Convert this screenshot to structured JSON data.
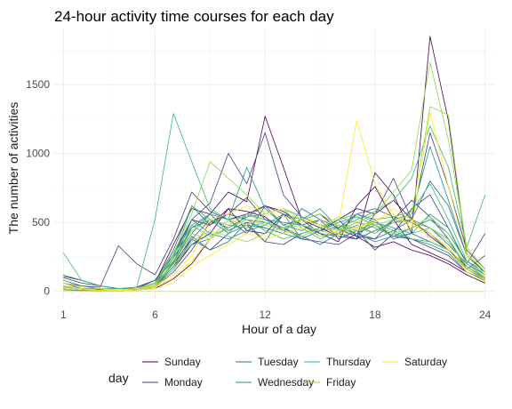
{
  "chart_data": {
    "type": "line",
    "title": "24-hour activity time courses for each day",
    "xlabel": "Hour of a day",
    "ylabel": "The number of activities",
    "xlim": [
      0.5,
      24.5
    ],
    "ylim": [
      -60,
      1900
    ],
    "x_ticks": [
      1,
      6,
      12,
      18,
      24
    ],
    "x_tick_labels": [
      "1",
      "6",
      "12",
      "18",
      "24"
    ],
    "y_ticks": [
      0,
      500,
      1000,
      1500
    ],
    "y_tick_labels": [
      "0",
      "500",
      "1000",
      "1500"
    ],
    "grid": true,
    "legend_title": "day",
    "legend_position": "bottom",
    "x": [
      1,
      2,
      3,
      4,
      5,
      6,
      7,
      8,
      9,
      10,
      11,
      12,
      13,
      14,
      15,
      16,
      17,
      18,
      19,
      20,
      21,
      22,
      23,
      24
    ],
    "series": [
      {
        "name": "Sunday",
        "color": "#440154",
        "lines": [
          [
            40,
            20,
            15,
            10,
            20,
            60,
            340,
            600,
            560,
            720,
            650,
            1270,
            900,
            520,
            460,
            400,
            380,
            860,
            700,
            420,
            1850,
            1240,
            260,
            140
          ],
          [
            20,
            10,
            10,
            5,
            10,
            30,
            160,
            340,
            420,
            600,
            580,
            540,
            440,
            520,
            560,
            450,
            400,
            320,
            360,
            300,
            260,
            200,
            120,
            60
          ],
          [
            110,
            80,
            40,
            20,
            30,
            80,
            260,
            520,
            480,
            600,
            440,
            420,
            560,
            480,
            420,
            360,
            620,
            760,
            520,
            340,
            280,
            220,
            140,
            80
          ],
          [
            30,
            20,
            10,
            10,
            10,
            20,
            90,
            200,
            380,
            520,
            560,
            620,
            580,
            480,
            440,
            520,
            600,
            560,
            660,
            520,
            400,
            300,
            180,
            90
          ]
        ]
      },
      {
        "name": "Monday",
        "color": "#443A83",
        "lines": [
          [
            20,
            10,
            5,
            5,
            10,
            40,
            210,
            520,
            640,
            1000,
            780,
            1150,
            700,
            540,
            480,
            420,
            380,
            560,
            820,
            520,
            1150,
            760,
            300,
            160
          ],
          [
            60,
            40,
            30,
            330,
            200,
            120,
            380,
            720,
            580,
            520,
            420,
            620,
            560,
            480,
            520,
            380,
            440,
            300,
            420,
            600,
            700,
            460,
            200,
            420
          ],
          [
            10,
            5,
            5,
            5,
            10,
            30,
            140,
            300,
            500,
            560,
            680,
            520,
            460,
            380,
            360,
            340,
            420,
            480,
            400,
            380,
            320,
            260,
            140,
            80
          ],
          [
            100,
            60,
            40,
            20,
            20,
            60,
            200,
            380,
            300,
            420,
            480,
            360,
            340,
            420,
            460,
            520,
            400,
            380,
            520,
            660,
            540,
            380,
            160,
            260
          ]
        ]
      },
      {
        "name": "Tuesday",
        "color": "#31688E",
        "lines": [
          [
            10,
            10,
            5,
            5,
            10,
            40,
            160,
            380,
            520,
            460,
            540,
            620,
            480,
            520,
            420,
            400,
            380,
            440,
            500,
            520,
            800,
            620,
            260,
            120
          ],
          [
            60,
            20,
            10,
            10,
            20,
            80,
            220,
            420,
            560,
            440,
            500,
            360,
            560,
            380,
            440,
            460,
            560,
            520,
            380,
            420,
            360,
            300,
            180,
            100
          ],
          [
            20,
            10,
            10,
            10,
            20,
            60,
            300,
            620,
            480,
            560,
            520,
            500,
            460,
            400,
            340,
            420,
            560,
            600,
            540,
            500,
            420,
            300,
            160,
            90
          ],
          [
            40,
            20,
            20,
            10,
            20,
            40,
            180,
            400,
            300,
            360,
            500,
            460,
            420,
            600,
            520,
            460,
            420,
            380,
            440,
            520,
            460,
            340,
            200,
            120
          ]
        ]
      },
      {
        "name": "Wednesday",
        "color": "#21908C",
        "lines": [
          [
            30,
            20,
            10,
            10,
            20,
            60,
            240,
            460,
            520,
            420,
            560,
            520,
            500,
            480,
            400,
            420,
            480,
            420,
            520,
            560,
            1050,
            660,
            260,
            120
          ],
          [
            20,
            10,
            10,
            5,
            10,
            40,
            200,
            460,
            560,
            520,
            900,
            600,
            480,
            440,
            520,
            480,
            440,
            500,
            460,
            420,
            560,
            460,
            200,
            100
          ],
          [
            80,
            40,
            20,
            20,
            20,
            60,
            280,
            520,
            420,
            380,
            440,
            480,
            560,
            520,
            600,
            460,
            420,
            360,
            400,
            460,
            520,
            420,
            220,
            140
          ],
          [
            10,
            10,
            5,
            5,
            10,
            40,
            180,
            340,
            380,
            520,
            480,
            460,
            420,
            380,
            440,
            500,
            540,
            480,
            420,
            380,
            340,
            280,
            140,
            80
          ]
        ]
      },
      {
        "name": "Thursday",
        "color": "#35B779",
        "lines": [
          [
            280,
            80,
            40,
            20,
            30,
            520,
            1290,
            940,
            600,
            520,
            540,
            560,
            600,
            540,
            480,
            460,
            520,
            580,
            660,
            820,
            1200,
            900,
            320,
            700
          ],
          [
            40,
            20,
            10,
            10,
            20,
            60,
            240,
            620,
            520,
            480,
            460,
            500,
            440,
            520,
            560,
            480,
            420,
            520,
            540,
            580,
            780,
            520,
            220,
            120
          ],
          [
            20,
            10,
            10,
            5,
            10,
            40,
            200,
            480,
            560,
            420,
            480,
            560,
            600,
            460,
            380,
            440,
            500,
            460,
            400,
            420,
            460,
            380,
            180,
            90
          ],
          [
            120,
            80,
            40,
            20,
            20,
            60,
            260,
            480,
            400,
            460,
            520,
            440,
            380,
            420,
            460,
            520,
            560,
            500,
            440,
            380,
            360,
            300,
            160,
            80
          ]
        ]
      },
      {
        "name": "Friday",
        "color": "#8FD744",
        "lines": [
          [
            30,
            20,
            10,
            10,
            20,
            60,
            280,
            560,
            940,
            820,
            700,
            560,
            600,
            520,
            480,
            440,
            500,
            560,
            720,
            880,
            1660,
            1100,
            320,
            160
          ],
          [
            20,
            10,
            10,
            5,
            10,
            40,
            220,
            440,
            520,
            480,
            560,
            500,
            460,
            520,
            560,
            480,
            460,
            420,
            500,
            560,
            1340,
            1280,
            280,
            140
          ],
          [
            60,
            30,
            20,
            10,
            20,
            50,
            200,
            420,
            380,
            460,
            520,
            480,
            440,
            400,
            460,
            540,
            500,
            480,
            420,
            460,
            540,
            420,
            200,
            100
          ],
          [
            10,
            10,
            5,
            5,
            10,
            30,
            160,
            360,
            440,
            400,
            360,
            420,
            460,
            480,
            440,
            400,
            440,
            480,
            520,
            500,
            460,
            360,
            180,
            90
          ]
        ]
      },
      {
        "name": "Saturday",
        "color": "#FDE725",
        "lines": [
          [
            40,
            20,
            10,
            10,
            20,
            40,
            120,
            260,
            520,
            560,
            620,
            580,
            540,
            500,
            520,
            480,
            1240,
            780,
            560,
            460,
            1300,
            760,
            260,
            120
          ],
          [
            20,
            10,
            10,
            5,
            10,
            30,
            100,
            220,
            380,
            520,
            480,
            560,
            600,
            520,
            480,
            420,
            460,
            520,
            560,
            480,
            420,
            320,
            160,
            80
          ],
          [
            60,
            30,
            20,
            10,
            10,
            20,
            60,
            180,
            260,
            340,
            420,
            380,
            420,
            460,
            400,
            440,
            460,
            500,
            600,
            520,
            380,
            300,
            140,
            70
          ],
          [
            0,
            0,
            0,
            0,
            0,
            0,
            0,
            0,
            0,
            0,
            0,
            0,
            0,
            0,
            0,
            0,
            0,
            0,
            0,
            0,
            0,
            0,
            0,
            0
          ]
        ]
      }
    ]
  }
}
